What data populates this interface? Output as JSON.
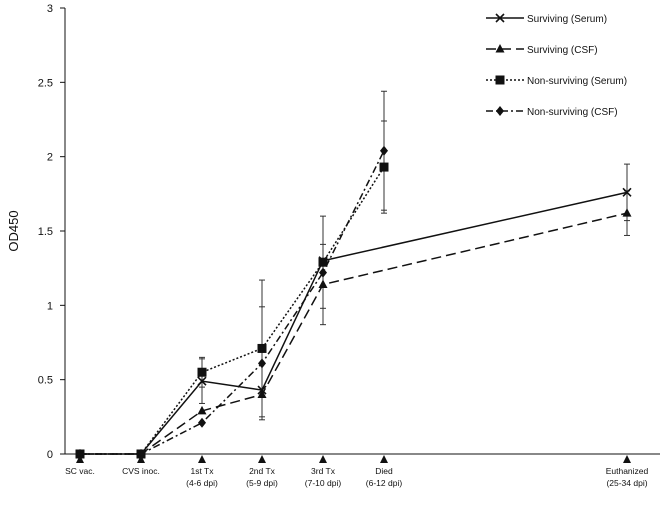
{
  "chart_data": {
    "type": "line",
    "title": "",
    "xlabel": "",
    "ylabel": "OD450",
    "ylim": [
      0,
      3
    ],
    "yticks": [
      "0",
      "0.5",
      "1",
      "1.5",
      "2",
      "2.5",
      "3"
    ],
    "grid": false,
    "legend_position": "top-right",
    "categories": [
      {
        "lines": [
          "SC vac."
        ]
      },
      {
        "lines": [
          "CVS inoc."
        ]
      },
      {
        "lines": [
          "1st Tx",
          "(4-6 dpi)"
        ]
      },
      {
        "lines": [
          "2nd Tx",
          "(5-9 dpi)"
        ]
      },
      {
        "lines": [
          "3rd Tx",
          "(7-10 dpi)"
        ]
      },
      {
        "lines": [
          "Died",
          "(6-12 dpi)"
        ]
      },
      {
        "lines": [
          "Euthanized",
          "(25-34 dpi)"
        ]
      }
    ],
    "series": [
      {
        "name": "Surviving (Serum)",
        "marker": "x",
        "dash": "solid",
        "color": "#111111",
        "points": [
          {
            "x": 0,
            "y": 0
          },
          {
            "x": 1,
            "y": 0
          },
          {
            "x": 2,
            "y": 0.49,
            "err": 0.15
          },
          {
            "x": 3,
            "y": 0.43
          },
          {
            "x": 4,
            "y": 1.3
          },
          {
            "x": 6,
            "y": 1.76,
            "err": 0.19
          }
        ]
      },
      {
        "name": "Surviving (CSF)",
        "marker": "triangle",
        "dash": "long-dash",
        "color": "#111111",
        "points": [
          {
            "x": 0,
            "y": 0
          },
          {
            "x": 1,
            "y": 0
          },
          {
            "x": 2,
            "y": 0.29
          },
          {
            "x": 3,
            "y": 0.4
          },
          {
            "x": 4,
            "y": 1.14,
            "err": 0.27
          },
          {
            "x": 6,
            "y": 1.62,
            "err": 0.15
          }
        ]
      },
      {
        "name": "Non-surviving (Serum)",
        "marker": "square",
        "dash": "dotted",
        "color": "#111111",
        "points": [
          {
            "x": 0,
            "y": 0
          },
          {
            "x": 1,
            "y": 0
          },
          {
            "x": 2,
            "y": 0.55,
            "err": 0.1
          },
          {
            "x": 3,
            "y": 0.71,
            "err": 0.46
          },
          {
            "x": 4,
            "y": 1.29,
            "err": 0.31
          },
          {
            "x": 5,
            "y": 1.93,
            "err": 0.31
          }
        ]
      },
      {
        "name": "Non-surviving (CSF)",
        "marker": "diamond",
        "dash": "dash-dot",
        "color": "#111111",
        "points": [
          {
            "x": 0,
            "y": 0
          },
          {
            "x": 1,
            "y": 0
          },
          {
            "x": 2,
            "y": 0.21
          },
          {
            "x": 3,
            "y": 0.61,
            "err": 0.38
          },
          {
            "x": 4,
            "y": 1.22
          },
          {
            "x": 5,
            "y": 2.04,
            "err": 0.4
          }
        ]
      }
    ]
  }
}
